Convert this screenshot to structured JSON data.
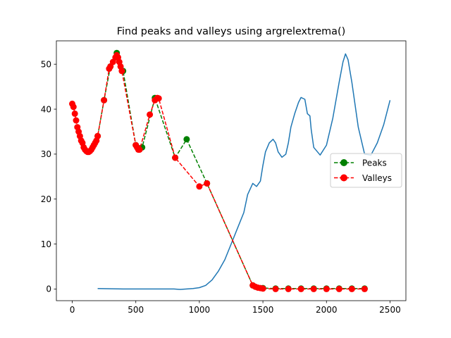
{
  "chart_data": {
    "type": "line",
    "title": "Find peaks and valleys using argrelextrema()",
    "xlabel": "",
    "ylabel": "",
    "xlim": [
      -125,
      2625
    ],
    "ylim": [
      -2.6,
      55.2
    ],
    "x_ticks": [
      0,
      500,
      1000,
      1500,
      2000,
      2500
    ],
    "y_ticks": [
      0,
      10,
      20,
      30,
      40,
      50
    ],
    "legend_position": "center-right",
    "colors": {
      "signal": "#1f77b4",
      "peaks": "#008000",
      "valleys": "#ff0000"
    },
    "signal": {
      "x": [
        200,
        400,
        600,
        800,
        850,
        900,
        950,
        1000,
        1050,
        1100,
        1150,
        1200,
        1250,
        1300,
        1350,
        1380,
        1420,
        1450,
        1480,
        1500,
        1520,
        1550,
        1580,
        1600,
        1620,
        1650,
        1680,
        1700,
        1720,
        1750,
        1780,
        1800,
        1830,
        1850,
        1870,
        1880,
        1900,
        1950,
        2000,
        2050,
        2100,
        2130,
        2150,
        2170,
        2200,
        2250,
        2300,
        2350,
        2400,
        2450,
        2500
      ],
      "y": [
        0.1,
        0.0,
        0.0,
        0.0,
        -0.1,
        0.0,
        0.1,
        0.3,
        0.8,
        2.0,
        4.0,
        6.5,
        10.0,
        13.5,
        17.0,
        21.0,
        23.5,
        22.8,
        24.0,
        27.5,
        30.5,
        32.5,
        33.3,
        32.5,
        30.5,
        29.3,
        30.0,
        32.5,
        36.0,
        39.0,
        41.5,
        42.6,
        42.2,
        39.0,
        38.5,
        35.5,
        31.5,
        29.8,
        32.0,
        38.0,
        46.0,
        50.5,
        52.3,
        51.0,
        46.0,
        36.0,
        30.0,
        29.8,
        32.5,
        36.5,
        42.0
      ]
    },
    "series": [
      {
        "name": "Peaks",
        "x": [
          200,
          250,
          300,
          350,
          400,
          500,
          550,
          650,
          810,
          900,
          1060,
          1420,
          1500,
          1600,
          1700,
          1800,
          1900,
          2000,
          2100,
          2200,
          2300
        ],
        "y": [
          34.0,
          42.0,
          49.5,
          52.5,
          48.5,
          32.0,
          31.5,
          42.5,
          29.2,
          33.3,
          23.5,
          0.8,
          0.2,
          0.1,
          0.1,
          0.1,
          0.1,
          0.1,
          0.1,
          0.1,
          0.1
        ]
      },
      {
        "name": "Valleys",
        "x": [
          0,
          10,
          20,
          30,
          40,
          50,
          60,
          70,
          80,
          90,
          100,
          110,
          120,
          130,
          140,
          150,
          160,
          170,
          180,
          190,
          200,
          250,
          290,
          300,
          320,
          340,
          350,
          360,
          370,
          380,
          390,
          500,
          510,
          520,
          530,
          610,
          650,
          670,
          680,
          810,
          1000,
          1060,
          1420,
          1440,
          1460,
          1480,
          1500,
          1600,
          1700,
          1800,
          1900,
          2000,
          2100,
          2200,
          2300
        ],
        "y": [
          41.2,
          40.5,
          39.0,
          37.5,
          36.0,
          35.0,
          34.0,
          33.0,
          32.5,
          31.5,
          31.0,
          30.7,
          30.5,
          30.5,
          30.7,
          31.0,
          31.5,
          32.0,
          32.5,
          33.0,
          34.0,
          42.0,
          49.0,
          49.5,
          50.5,
          51.5,
          52.0,
          51.5,
          50.5,
          49.5,
          48.5,
          32.0,
          31.5,
          31.0,
          31.0,
          38.8,
          42.0,
          42.5,
          42.4,
          29.2,
          22.8,
          23.5,
          0.8,
          0.5,
          0.3,
          0.2,
          0.1,
          0.0,
          0.0,
          0.0,
          0.0,
          0.0,
          0.0,
          0.0,
          0.0
        ]
      }
    ]
  }
}
